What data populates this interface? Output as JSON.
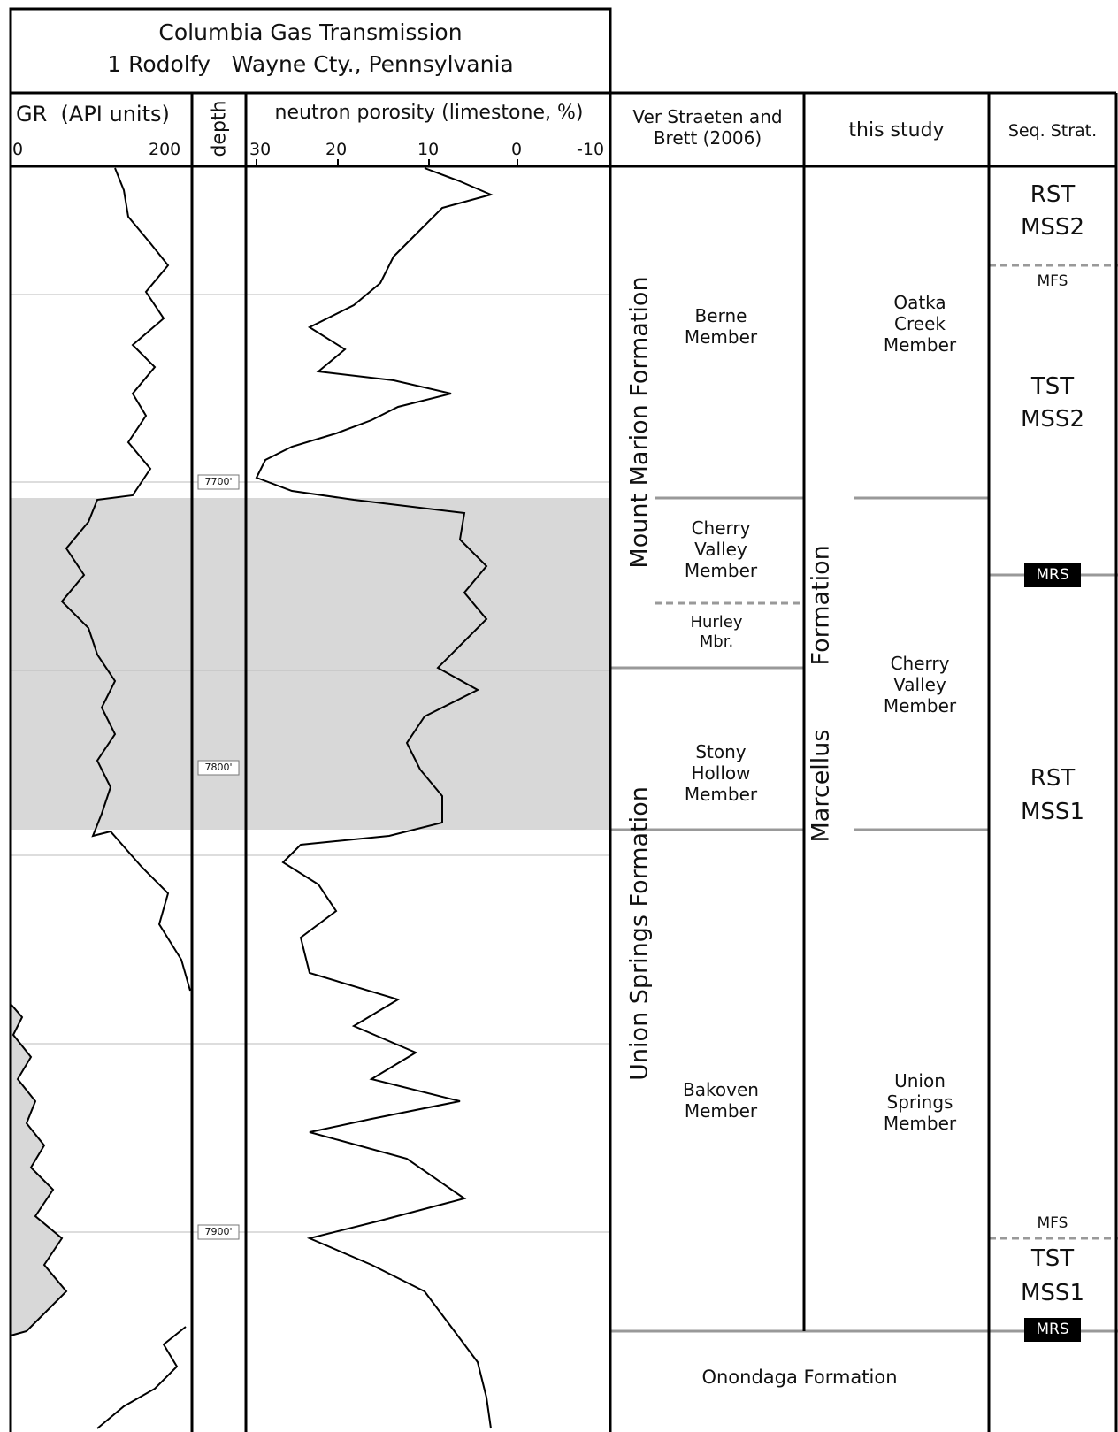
{
  "header": {
    "line1": "Columbia Gas Transmission",
    "line2": "1 Rodolfy   Wayne Cty., Pennsylvania"
  },
  "columns": {
    "gr": {
      "title": "GR  (API units)",
      "min": "0",
      "max": "200"
    },
    "depth": {
      "title": "depth"
    },
    "neutron": {
      "title": "neutron porosity (limestone, %)",
      "ticks": [
        "30",
        "20",
        "10",
        "0",
        "-10"
      ]
    },
    "ver_straeten": {
      "title": "Ver Straeten and Brett (2006)"
    },
    "this_study": {
      "title": "this study"
    },
    "seq_strat": {
      "title": "Seq. Strat."
    }
  },
  "depth_markers": [
    "7700'",
    "7800'",
    "7900'"
  ],
  "ver_straeten_units": {
    "mount_marion": "Mount Marion Formation",
    "union_springs": "Union Springs Formation",
    "berne": "Berne Member",
    "cherry_valley": "Cherry Valley Member",
    "hurley": "Hurley Mbr.",
    "stony_hollow": "Stony Hollow Member",
    "bakoven": "Bakoven Member",
    "onondaga": "Onondaga Formation"
  },
  "this_study_units": {
    "marcellus_a": "Marcellus",
    "marcellus_b": "Formation",
    "oatka": "Oatka Creek Member",
    "cherry_valley": "Cherry Valley Member",
    "union_springs": "Union Springs Member"
  },
  "seq_strat_units": {
    "rst_mss2_a": "RST",
    "rst_mss2_b": "MSS2",
    "mfs_top": "MFS",
    "tst_mss2_a": "TST",
    "tst_mss2_b": "MSS2",
    "mrs_top": "MRS",
    "rst_mss1_a": "RST",
    "rst_mss1_b": "MSS1",
    "mfs_bottom": "MFS",
    "tst_mss1_a": "TST",
    "tst_mss1_b": "MSS1",
    "mrs_bottom": "MRS"
  },
  "colors": {
    "shade": "#d8d8d8",
    "boundary": "#999999",
    "gridline": "#bbbbbb"
  }
}
